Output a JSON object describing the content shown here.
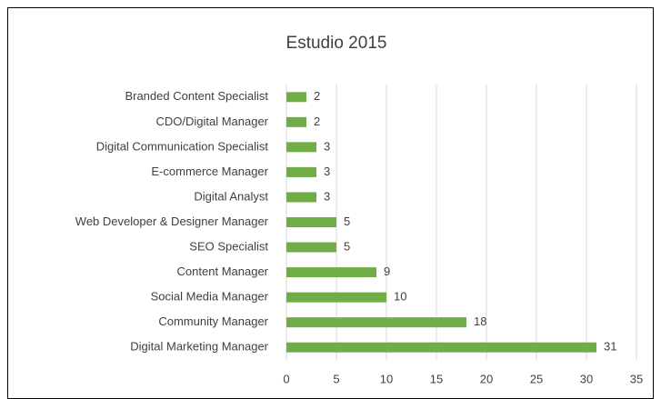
{
  "chart_data": {
    "type": "hbar",
    "title": "Estudio 2015",
    "categories": [
      "Branded Content Specialist",
      "CDO/Digital Manager",
      "Digital Communication Specialist",
      "E-commerce Manager",
      "Digital Analyst",
      "Web Developer & Designer Manager",
      "SEO Specialist",
      "Content Manager",
      "Social Media Manager",
      "Community Manager",
      "Digital Marketing Manager"
    ],
    "values": [
      2,
      2,
      3,
      3,
      3,
      5,
      5,
      9,
      10,
      18,
      31
    ],
    "color": "#70ad47",
    "xlim": [
      0,
      35
    ],
    "xticks": [
      0,
      5,
      10,
      15,
      20,
      25,
      30,
      35
    ],
    "grid": true
  }
}
